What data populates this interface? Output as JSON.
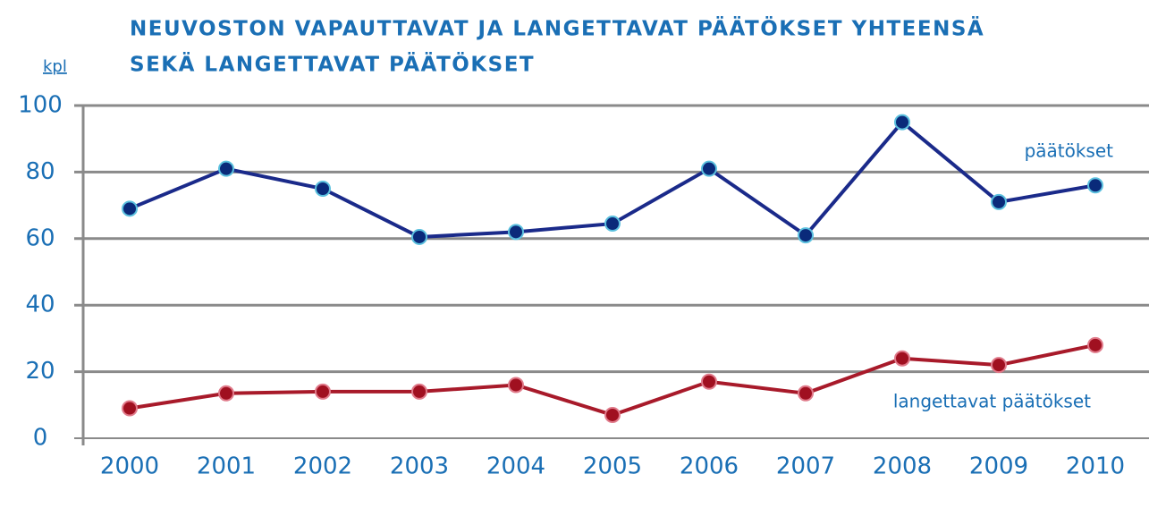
{
  "chart_data": {
    "type": "line",
    "title": [
      "NEUVOSTON VAPAUTTAVAT JA LANGETTAVAT PÄÄTÖKSET YHTEENSÄ",
      "SEKÄ LANGETTAVAT PÄÄTÖKSET"
    ],
    "y_label": "kpl",
    "categories": [
      "2000",
      "2001",
      "2002",
      "2003",
      "2004",
      "2005",
      "2006",
      "2007",
      "2008",
      "2009",
      "2010"
    ],
    "series": [
      {
        "name": "päätökset",
        "color": "#1a2a8a",
        "marker_color": "#0a2a7a",
        "values": [
          69,
          81,
          75,
          60.5,
          62,
          64.5,
          81,
          61,
          95,
          71,
          76
        ]
      },
      {
        "name": "langettavat päätökset",
        "color": "#a81a2a",
        "marker_color": "#a01020",
        "values": [
          9,
          13.5,
          14,
          14,
          16,
          7,
          17,
          13.5,
          24,
          22,
          28
        ]
      }
    ],
    "ylim": [
      0,
      100
    ],
    "yticks": [
      0,
      20,
      40,
      60,
      80,
      100
    ],
    "grid": true
  }
}
